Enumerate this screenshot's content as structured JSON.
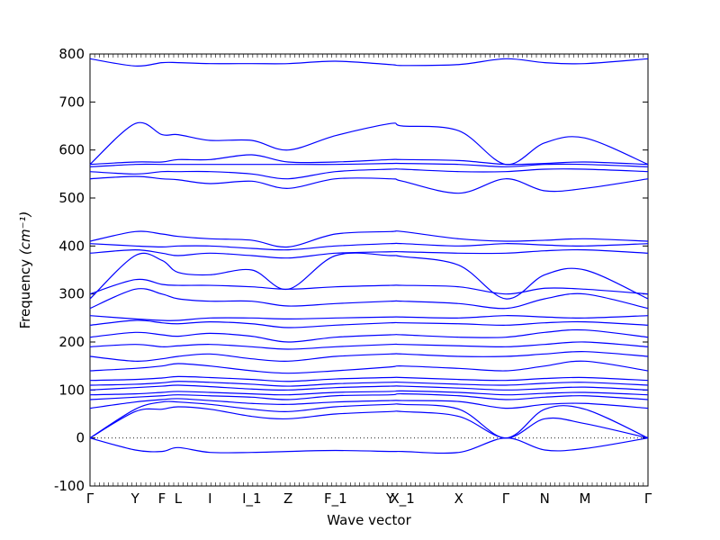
{
  "chart_data": {
    "type": "line",
    "title": "",
    "xlabel": "Wave vector",
    "ylabel": "Frequency",
    "ylabel_unit": "(cm⁻¹)",
    "ylim": [
      -100,
      800
    ],
    "yticks": [
      -100,
      0,
      100,
      200,
      300,
      400,
      500,
      600,
      700,
      800
    ],
    "xticks": [
      {
        "label": "Γ",
        "x": 0.0
      },
      {
        "label": "Y",
        "x": 0.081
      },
      {
        "label": "F",
        "x": 0.129
      },
      {
        "label": "L",
        "x": 0.158
      },
      {
        "label": "I",
        "x": 0.215
      },
      {
        "label": "I_1",
        "x": 0.29
      },
      {
        "label": "Z",
        "x": 0.355
      },
      {
        "label": "F_1",
        "x": 0.44
      },
      {
        "label": "Y",
        "x": 0.538
      },
      {
        "label": "X_1",
        "x": 0.56
      },
      {
        "label": "X",
        "x": 0.661
      },
      {
        "label": "Γ",
        "x": 0.745
      },
      {
        "label": "N",
        "x": 0.815
      },
      {
        "label": "M",
        "x": 0.887
      },
      {
        "label": "Γ",
        "x": 1.0
      }
    ],
    "zero_line": {
      "y": 0,
      "style": "dotted"
    },
    "line_color": "#0000ff",
    "x": [
      0,
      0.081,
      0.129,
      0.158,
      0.215,
      0.29,
      0.355,
      0.44,
      0.538,
      0.56,
      0.661,
      0.745,
      0.815,
      0.887,
      1.0
    ],
    "series": [
      {
        "values": [
          0,
          -25,
          -28,
          -20,
          -30,
          -30,
          -28,
          -26,
          -28,
          -28,
          -30,
          0,
          -25,
          -22,
          0
        ]
      },
      {
        "values": [
          0,
          55,
          60,
          65,
          60,
          45,
          40,
          50,
          55,
          55,
          45,
          0,
          40,
          30,
          0
        ]
      },
      {
        "values": [
          0,
          60,
          75,
          75,
          70,
          60,
          55,
          65,
          70,
          70,
          60,
          0,
          60,
          60,
          0
        ]
      },
      {
        "values": [
          62,
          75,
          80,
          82,
          78,
          72,
          70,
          75,
          78,
          78,
          76,
          62,
          70,
          72,
          62
        ]
      },
      {
        "values": [
          80,
          85,
          88,
          90,
          88,
          85,
          80,
          88,
          90,
          92,
          88,
          80,
          85,
          88,
          80
        ]
      },
      {
        "values": [
          90,
          92,
          95,
          97,
          95,
          92,
          90,
          95,
          97,
          98,
          95,
          90,
          93,
          95,
          90
        ]
      },
      {
        "values": [
          100,
          105,
          108,
          110,
          107,
          102,
          100,
          105,
          108,
          108,
          104,
          100,
          103,
          106,
          100
        ]
      },
      {
        "values": [
          110,
          112,
          115,
          118,
          116,
          112,
          108,
          113,
          116,
          116,
          112,
          110,
          114,
          116,
          110
        ]
      },
      {
        "values": [
          120,
          122,
          125,
          128,
          126,
          122,
          118,
          123,
          126,
          126,
          122,
          120,
          124,
          126,
          120
        ]
      },
      {
        "values": [
          140,
          145,
          150,
          155,
          150,
          140,
          135,
          140,
          148,
          150,
          145,
          140,
          150,
          160,
          140
        ]
      },
      {
        "values": [
          170,
          160,
          165,
          170,
          175,
          165,
          160,
          170,
          175,
          175,
          170,
          170,
          175,
          180,
          170
        ]
      },
      {
        "values": [
          190,
          195,
          190,
          192,
          195,
          190,
          185,
          190,
          195,
          195,
          192,
          190,
          195,
          200,
          190
        ]
      },
      {
        "values": [
          210,
          220,
          215,
          212,
          218,
          212,
          200,
          210,
          215,
          215,
          210,
          210,
          220,
          225,
          210
        ]
      },
      {
        "values": [
          235,
          245,
          240,
          238,
          242,
          238,
          230,
          235,
          240,
          240,
          238,
          235,
          240,
          242,
          235
        ]
      },
      {
        "values": [
          255,
          248,
          245,
          245,
          250,
          250,
          248,
          250,
          252,
          252,
          250,
          255,
          252,
          250,
          255
        ]
      },
      {
        "values": [
          270,
          310,
          300,
          290,
          285,
          285,
          275,
          280,
          285,
          285,
          280,
          270,
          290,
          300,
          270
        ]
      },
      {
        "values": [
          300,
          330,
          320,
          318,
          318,
          315,
          310,
          315,
          318,
          318,
          315,
          300,
          312,
          310,
          300
        ]
      },
      {
        "values": [
          290,
          380,
          370,
          345,
          340,
          350,
          310,
          380,
          380,
          378,
          360,
          290,
          340,
          350,
          290
        ]
      },
      {
        "values": [
          385,
          392,
          385,
          380,
          385,
          380,
          375,
          385,
          388,
          388,
          385,
          385,
          390,
          392,
          385
        ]
      },
      {
        "values": [
          405,
          400,
          398,
          400,
          400,
          395,
          392,
          400,
          405,
          405,
          400,
          405,
          402,
          400,
          405
        ]
      },
      {
        "values": [
          410,
          430,
          425,
          420,
          415,
          412,
          398,
          425,
          430,
          430,
          415,
          410,
          412,
          415,
          410
        ]
      },
      {
        "values": [
          540,
          545,
          540,
          538,
          530,
          535,
          520,
          540,
          540,
          535,
          510,
          540,
          515,
          520,
          540
        ]
      },
      {
        "values": [
          555,
          550,
          555,
          555,
          555,
          550,
          540,
          555,
          560,
          560,
          555,
          555,
          560,
          560,
          555
        ]
      },
      {
        "values": [
          565,
          570,
          570,
          570,
          570,
          570,
          570,
          570,
          572,
          572,
          570,
          565,
          570,
          570,
          565
        ]
      },
      {
        "values": [
          570,
          575,
          575,
          580,
          580,
          590,
          575,
          575,
          580,
          580,
          578,
          570,
          572,
          575,
          570
        ]
      },
      {
        "values": [
          570,
          655,
          632,
          632,
          620,
          620,
          600,
          630,
          655,
          650,
          640,
          570,
          615,
          625,
          570
        ]
      },
      {
        "values": [
          790,
          775,
          782,
          782,
          780,
          780,
          780,
          785,
          778,
          776,
          778,
          790,
          782,
          780,
          790
        ]
      }
    ]
  }
}
